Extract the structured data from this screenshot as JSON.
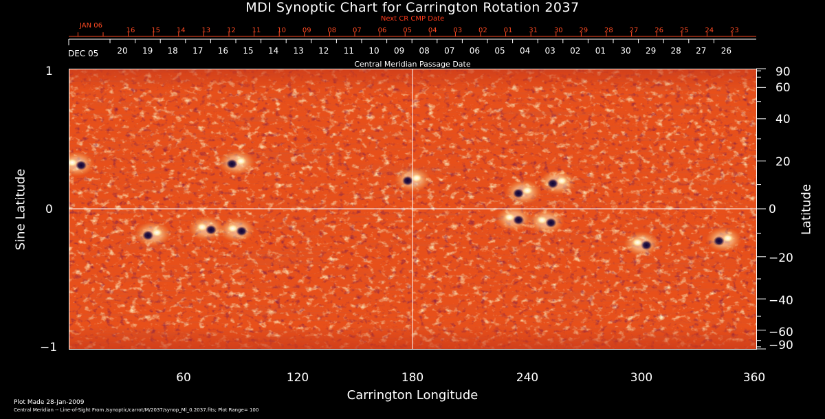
{
  "title": "MDI Synoptic Chart for Carrington Rotation 2037",
  "top_axis": {
    "label": "Next CR CMP Date",
    "start_label": "JAN 06",
    "ticks": [
      "16",
      "15",
      "14",
      "13",
      "12",
      "11",
      "10",
      "09",
      "08",
      "07",
      "06",
      "05",
      "04",
      "03",
      "02",
      "01",
      "31",
      "30",
      "29",
      "28",
      "27",
      "26",
      "25",
      "24",
      "23"
    ]
  },
  "date_axis": {
    "start_label": "DEC 05",
    "ticks": [
      "20",
      "19",
      "18",
      "17",
      "16",
      "15",
      "14",
      "13",
      "12",
      "11",
      "10",
      "09",
      "08",
      "07",
      "06",
      "05",
      "04",
      "03",
      "02",
      "01",
      "30",
      "29",
      "28",
      "27",
      "26"
    ],
    "label": "Central Meridian Passage Date"
  },
  "left_axis": {
    "title": "Sine Latitude",
    "ticks": [
      "1",
      "0",
      "−1"
    ]
  },
  "right_axis": {
    "title": "Latitude",
    "ticks": [
      "90",
      "60",
      "40",
      "20",
      "0",
      "−20",
      "−40",
      "−60",
      "−90"
    ]
  },
  "bottom_axis": {
    "title": "Carrington Longitude",
    "ticks": [
      "60",
      "120",
      "180",
      "240",
      "300",
      "360"
    ]
  },
  "footer": {
    "line1": "Plot Made 28-Jan-2009",
    "line2": "Central Meridian -- Line-of-Sight From /synoptic/carrot/M/2037/synop_Ml_0.2037.fits; Plot Range=  100"
  },
  "colors": {
    "background": "#e8501a",
    "axes": "#ffffff",
    "red_text": "#ff4a22"
  },
  "chart_data": {
    "type": "heatmap",
    "title": "MDI Synoptic Chart for Carrington Rotation 2037",
    "xlabel": "Carrington Longitude",
    "ylabel": "Sine Latitude",
    "xlim": [
      0,
      360
    ],
    "ylim": [
      -1,
      1
    ],
    "x_ticks": [
      60,
      120,
      180,
      240,
      300,
      360
    ],
    "y_ticks": [
      -1,
      0,
      1
    ],
    "secondary_y_label": "Latitude",
    "secondary_y_ticks": [
      90,
      60,
      40,
      20,
      0,
      -20,
      -40,
      -60,
      -90
    ],
    "plot_range": 100,
    "grid": "lines at longitude 180 and sine latitude 0",
    "active_regions": [
      {
        "lon": 4,
        "sinlat": 0.32
      },
      {
        "lon": 44,
        "sinlat": -0.18
      },
      {
        "lon": 72,
        "sinlat": -0.14
      },
      {
        "lon": 88,
        "sinlat": 0.33
      },
      {
        "lon": 88,
        "sinlat": -0.15
      },
      {
        "lon": 180,
        "sinlat": 0.21
      },
      {
        "lon": 233,
        "sinlat": -0.07
      },
      {
        "lon": 238,
        "sinlat": 0.12
      },
      {
        "lon": 250,
        "sinlat": -0.09
      },
      {
        "lon": 256,
        "sinlat": 0.19
      },
      {
        "lon": 300,
        "sinlat": -0.25
      },
      {
        "lon": 343,
        "sinlat": -0.22
      }
    ]
  }
}
